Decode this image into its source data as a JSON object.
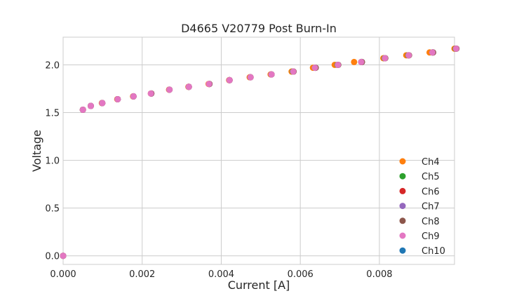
{
  "chart_data": {
    "type": "scatter",
    "title": "D4665 V20779 Post Burn-In",
    "xlabel": "Current [A]",
    "ylabel": "Voltage",
    "xlim": [
      0.0,
      0.0099
    ],
    "ylim": [
      -0.09,
      2.29
    ],
    "xticks": [
      "0.000",
      "0.002",
      "0.004",
      "0.006",
      "0.008"
    ],
    "xtick_values": [
      0.0,
      0.002,
      0.004,
      0.006,
      0.008
    ],
    "yticks": [
      "0.0",
      "0.5",
      "1.0",
      "1.5",
      "2.0"
    ],
    "ytick_values": [
      0.0,
      0.5,
      1.0,
      1.5,
      2.0
    ],
    "grid": true,
    "legend_position": "bottom-right",
    "series": [
      {
        "name": "Ch4",
        "color": "#ff7f0e",
        "x": [
          0.0,
          0.0005,
          0.0007,
          0.00098,
          0.00137,
          0.00177,
          0.00222,
          0.00268,
          0.00317,
          0.00368,
          0.0042,
          0.00472,
          0.00525,
          0.00578,
          0.00632,
          0.00687,
          0.00736,
          0.0081,
          0.00868,
          0.00927,
          0.0099
        ],
        "y": [
          0.0,
          1.53,
          1.57,
          1.6,
          1.64,
          1.67,
          1.7,
          1.74,
          1.77,
          1.8,
          1.84,
          1.87,
          1.9,
          1.93,
          1.97,
          2.0,
          2.03,
          2.07,
          2.1,
          2.13,
          2.17
        ]
      },
      {
        "name": "Ch5",
        "color": "#2ca02c",
        "x": [
          0.0,
          0.0005,
          0.0007,
          0.00099,
          0.00138,
          0.00178,
          0.00223,
          0.00269,
          0.00318,
          0.0037,
          0.00421,
          0.00474,
          0.00527,
          0.00581,
          0.00637,
          0.00694,
          0.00754,
          0.00813,
          0.00873,
          0.00934,
          0.00993
        ],
        "y": [
          0.0,
          1.53,
          1.57,
          1.6,
          1.64,
          1.67,
          1.7,
          1.74,
          1.77,
          1.8,
          1.84,
          1.87,
          1.9,
          1.93,
          1.97,
          2.0,
          2.03,
          2.07,
          2.1,
          2.13,
          2.17
        ]
      },
      {
        "name": "Ch6",
        "color": "#d62728",
        "x": [
          0.0,
          0.0005,
          0.0007,
          0.00099,
          0.00138,
          0.00178,
          0.00223,
          0.00269,
          0.00318,
          0.0037,
          0.00421,
          0.00474,
          0.00527,
          0.00582,
          0.00638,
          0.00695,
          0.00755,
          0.00814,
          0.00874,
          0.00935,
          0.00994
        ],
        "y": [
          0.0,
          1.53,
          1.57,
          1.6,
          1.64,
          1.67,
          1.7,
          1.74,
          1.77,
          1.8,
          1.84,
          1.87,
          1.9,
          1.93,
          1.97,
          2.0,
          2.03,
          2.07,
          2.1,
          2.13,
          2.17
        ]
      },
      {
        "name": "Ch7",
        "color": "#9467bd",
        "x": [
          0.0,
          0.0005,
          0.0007,
          0.00099,
          0.00138,
          0.00178,
          0.00223,
          0.00269,
          0.00318,
          0.0037,
          0.00421,
          0.00474,
          0.00527,
          0.00582,
          0.00638,
          0.00695,
          0.00755,
          0.00814,
          0.00874,
          0.00935,
          0.00994
        ],
        "y": [
          0.0,
          1.53,
          1.57,
          1.6,
          1.64,
          1.67,
          1.7,
          1.74,
          1.77,
          1.8,
          1.84,
          1.87,
          1.9,
          1.93,
          1.97,
          2.0,
          2.03,
          2.07,
          2.1,
          2.13,
          2.17
        ]
      },
      {
        "name": "Ch8",
        "color": "#8c564b",
        "x": [
          0.0,
          0.0005,
          0.0007,
          0.00099,
          0.00138,
          0.00178,
          0.00223,
          0.00269,
          0.00318,
          0.0037,
          0.00421,
          0.00474,
          0.00527,
          0.00583,
          0.00639,
          0.00696,
          0.00756,
          0.00815,
          0.00875,
          0.00936,
          0.00995
        ],
        "y": [
          0.0,
          1.53,
          1.57,
          1.6,
          1.64,
          1.67,
          1.7,
          1.74,
          1.77,
          1.8,
          1.84,
          1.87,
          1.9,
          1.93,
          1.97,
          2.0,
          2.03,
          2.07,
          2.1,
          2.13,
          2.17
        ]
      },
      {
        "name": "Ch9",
        "color": "#e377c2",
        "x": [
          0.0,
          0.0005,
          0.0007,
          0.00099,
          0.00138,
          0.00178,
          0.00222,
          0.00269,
          0.00318,
          0.00369,
          0.00421,
          0.00474,
          0.00527,
          0.00582,
          0.00637,
          0.00695,
          0.00754,
          0.00814,
          0.00874,
          0.00934,
          0.00994
        ],
        "y": [
          0.0,
          1.53,
          1.57,
          1.6,
          1.64,
          1.67,
          1.7,
          1.74,
          1.77,
          1.8,
          1.84,
          1.87,
          1.9,
          1.93,
          1.97,
          2.0,
          2.03,
          2.07,
          2.1,
          2.13,
          2.17
        ]
      },
      {
        "name": "Ch10",
        "color": "#1f77b4",
        "x": [],
        "y": []
      }
    ]
  }
}
